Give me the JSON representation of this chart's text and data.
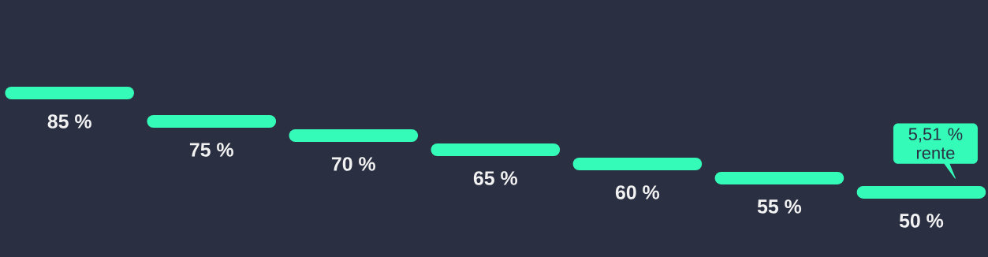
{
  "chart_data": {
    "type": "other",
    "categories": [
      null,
      null,
      null,
      null,
      null,
      null,
      null
    ],
    "values": [
      85,
      75,
      70,
      65,
      60,
      55,
      50
    ],
    "value_labels": [
      "85 %",
      "75 %",
      "70 %",
      "65 %",
      "60 %",
      "55 %",
      "50 %"
    ],
    "color": "#34fbb8",
    "annotations": [
      "5,51 % rente"
    ]
  }
}
